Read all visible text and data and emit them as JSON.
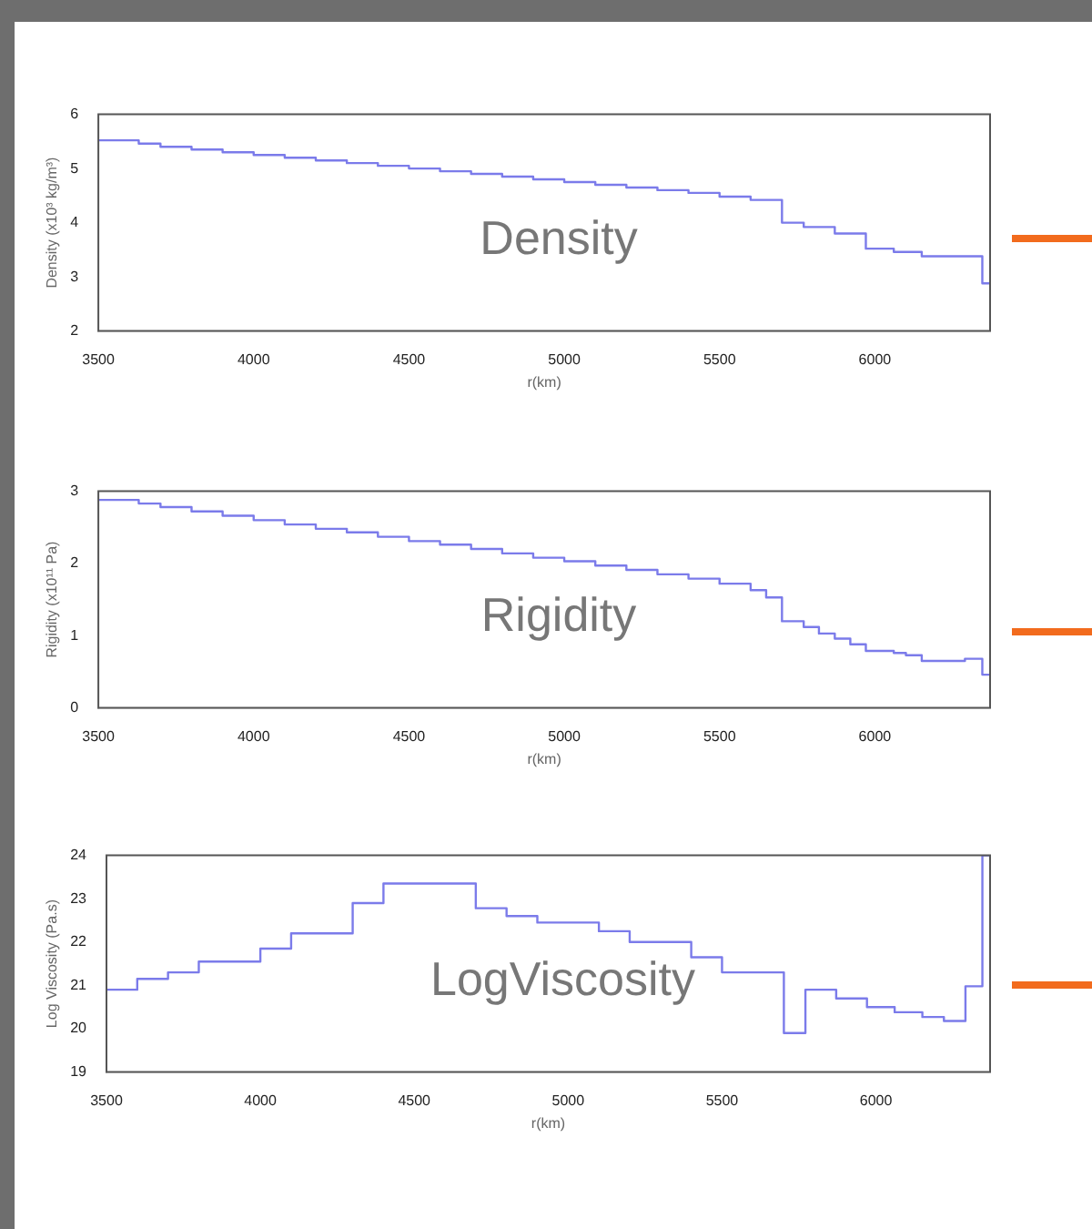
{
  "chart_data": [
    {
      "type": "step",
      "xlabel": "r(km)",
      "ylabel": "Density (x10³ kg/m³)",
      "annotations": [
        "Density"
      ],
      "color": "#7b7bea",
      "xlim": [
        3500,
        6371
      ],
      "xticks": [
        3500,
        4000,
        4500,
        5000,
        5500,
        6000
      ],
      "ylim": [
        2,
        6
      ],
      "yticks": [
        2,
        3,
        4,
        5,
        6
      ],
      "x": [
        3500,
        3630,
        3700,
        3800,
        3900,
        4000,
        4100,
        4200,
        4300,
        4400,
        4500,
        4600,
        4700,
        4800,
        4900,
        5000,
        5100,
        5200,
        5300,
        5400,
        5500,
        5600,
        5701,
        5771,
        5871,
        5971,
        6061,
        6151,
        6346,
        6371
      ],
      "values": [
        5.52,
        5.46,
        5.4,
        5.35,
        5.3,
        5.25,
        5.2,
        5.15,
        5.1,
        5.05,
        5.0,
        4.95,
        4.9,
        4.85,
        4.8,
        4.75,
        4.7,
        4.65,
        4.6,
        4.55,
        4.48,
        4.42,
        4.0,
        3.92,
        3.8,
        3.52,
        3.46,
        3.38,
        2.88,
        2.88
      ]
    },
    {
      "type": "step",
      "xlabel": "r(km)",
      "ylabel": "Rigidity (x10¹¹ Pa)",
      "annotations": [
        "Rigidity"
      ],
      "color": "#7b7bea",
      "xlim": [
        3500,
        6371
      ],
      "xticks": [
        3500,
        4000,
        4500,
        5000,
        5500,
        6000
      ],
      "ylim": [
        0,
        3
      ],
      "yticks": [
        0,
        1,
        2,
        3
      ],
      "x": [
        3500,
        3630,
        3700,
        3800,
        3900,
        4000,
        4100,
        4200,
        4300,
        4400,
        4500,
        4600,
        4700,
        4800,
        4900,
        5000,
        5100,
        5200,
        5300,
        5400,
        5500,
        5600,
        5650,
        5701,
        5771,
        5820,
        5871,
        5921,
        5971,
        6061,
        6100,
        6151,
        6290,
        6346,
        6371
      ],
      "values": [
        2.88,
        2.83,
        2.78,
        2.72,
        2.66,
        2.6,
        2.54,
        2.48,
        2.43,
        2.37,
        2.31,
        2.26,
        2.2,
        2.14,
        2.08,
        2.03,
        1.97,
        1.91,
        1.85,
        1.79,
        1.72,
        1.63,
        1.53,
        1.2,
        1.12,
        1.03,
        0.96,
        0.88,
        0.79,
        0.76,
        0.73,
        0.65,
        0.68,
        0.46,
        0.46
      ]
    },
    {
      "type": "step",
      "xlabel": "r(km)",
      "ylabel": "Log Viscosity (Pa.s)",
      "annotations": [
        "LogViscosity"
      ],
      "color": "#7b7bea",
      "xlim": [
        3500,
        6371
      ],
      "xticks": [
        3500,
        4000,
        4500,
        5000,
        5500,
        6000
      ],
      "ylim": [
        19,
        24
      ],
      "yticks": [
        19,
        20,
        21,
        22,
        23,
        24
      ],
      "x": [
        3500,
        3600,
        3700,
        3800,
        4000,
        4100,
        4300,
        4400,
        4700,
        4800,
        4900,
        5100,
        5200,
        5400,
        5500,
        5701,
        5771,
        5871,
        5971,
        6061,
        6151,
        6221,
        6291,
        6346,
        6371
      ],
      "values": [
        20.9,
        21.15,
        21.3,
        21.55,
        21.85,
        22.2,
        22.9,
        23.35,
        22.78,
        22.6,
        22.45,
        22.25,
        22.0,
        21.65,
        21.3,
        19.9,
        20.9,
        20.7,
        20.5,
        20.38,
        20.27,
        20.18,
        20.98,
        24,
        24
      ]
    }
  ]
}
